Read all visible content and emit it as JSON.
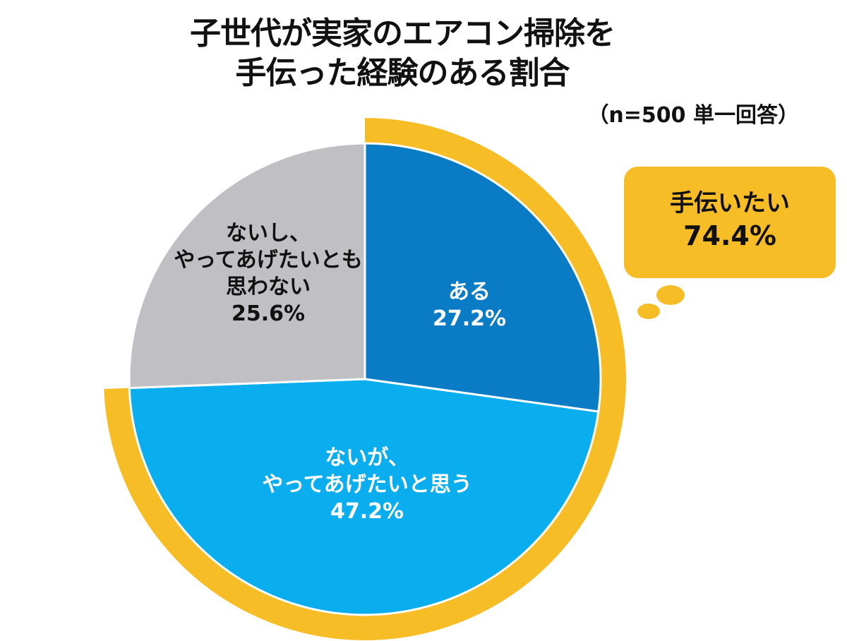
{
  "chart_data": {
    "type": "pie",
    "title": "子世代が実家のエアコン掃除を手伝った経験のある割合",
    "subtitle": "（n=500 単一回答）",
    "sample_size": 500,
    "categories": [
      "ある",
      "ないが、やってあげたいと思う",
      "ないし、やってあげたいとも思わない"
    ],
    "values": [
      27.2,
      47.2,
      25.6
    ],
    "colors": [
      "#0a7cc6",
      "#0aaeee",
      "#c0bfc3"
    ],
    "start_angle_deg": 0,
    "direction": "clockwise",
    "annotation": {
      "label": "手伝いたい",
      "value": 74.4,
      "covers": [
        "ある",
        "ないが、やってあげたいと思う"
      ],
      "color": "#f6bd26"
    }
  },
  "title": {
    "line1": "子世代が実家のエアコン掃除を",
    "line2": "手伝った経験のある割合",
    "note": "（n=500 単一回答）"
  },
  "slices": [
    {
      "lines": [
        "ある"
      ],
      "pct": "27.2%"
    },
    {
      "lines": [
        "ないが、",
        "やってあげたいと思う"
      ],
      "pct": "47.2%"
    },
    {
      "lines": [
        "ないし、",
        "やってあげたいとも",
        "思わない"
      ],
      "pct": "25.6%"
    }
  ],
  "callout": {
    "label": "手伝いたい",
    "pct": "74.4%"
  }
}
